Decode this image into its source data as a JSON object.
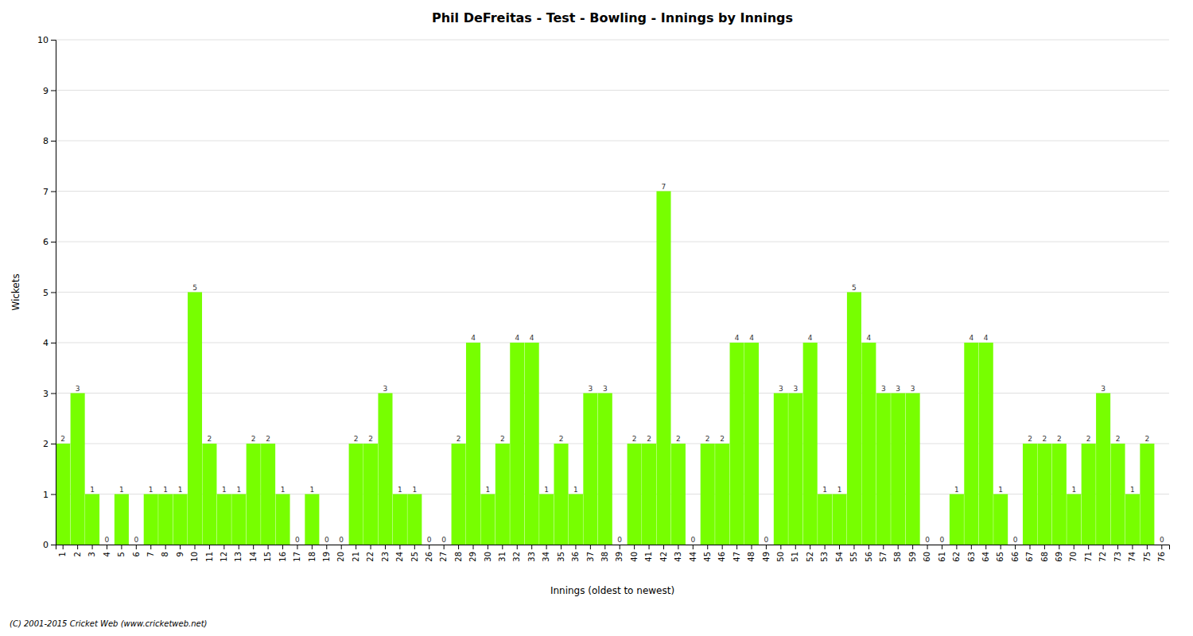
{
  "chart_data": {
    "type": "bar",
    "title": "Phil DeFreitas - Test - Bowling - Innings by Innings",
    "x_label": "Innings (oldest to newest)",
    "y_label": "Wickets",
    "annotations": [
      "(C) 2001-2015 Cricket Web (www.cricketweb.net)"
    ],
    "categories": [
      "1",
      "2",
      "3",
      "4",
      "5",
      "6",
      "7",
      "8",
      "9",
      "10",
      "11",
      "12",
      "13",
      "14",
      "15",
      "16",
      "17",
      "18",
      "19",
      "20",
      "21",
      "22",
      "23",
      "24",
      "25",
      "26",
      "27",
      "28",
      "29",
      "30",
      "31",
      "32",
      "33",
      "34",
      "35",
      "36",
      "37",
      "38",
      "39",
      "40",
      "41",
      "42",
      "43",
      "44",
      "45",
      "46",
      "47",
      "48",
      "49",
      "50",
      "51",
      "52",
      "53",
      "54",
      "55",
      "56",
      "57",
      "58",
      "59",
      "60",
      "61",
      "62",
      "63",
      "64",
      "65",
      "66",
      "67",
      "68",
      "69",
      "70",
      "71",
      "72",
      "73",
      "74",
      "75",
      "76"
    ],
    "values": [
      2,
      3,
      1,
      0,
      1,
      0,
      1,
      1,
      1,
      5,
      2,
      1,
      1,
      2,
      2,
      1,
      0,
      1,
      0,
      0,
      2,
      2,
      3,
      1,
      1,
      0,
      0,
      2,
      4,
      1,
      2,
      4,
      4,
      1,
      2,
      1,
      3,
      3,
      0,
      2,
      2,
      7,
      2,
      0,
      2,
      2,
      4,
      4,
      0,
      3,
      3,
      4,
      1,
      1,
      5,
      4,
      3,
      3,
      3,
      0,
      0,
      1,
      4,
      4,
      1,
      0,
      2,
      2,
      2,
      1,
      2,
      3,
      2,
      1,
      2,
      0
    ],
    "color": "#77FF00",
    "ylim": [
      0,
      10
    ],
    "yticks": [
      0,
      1,
      2,
      3,
      4,
      5,
      6,
      7,
      8,
      9,
      10
    ],
    "grid": true,
    "data_labels": true
  }
}
